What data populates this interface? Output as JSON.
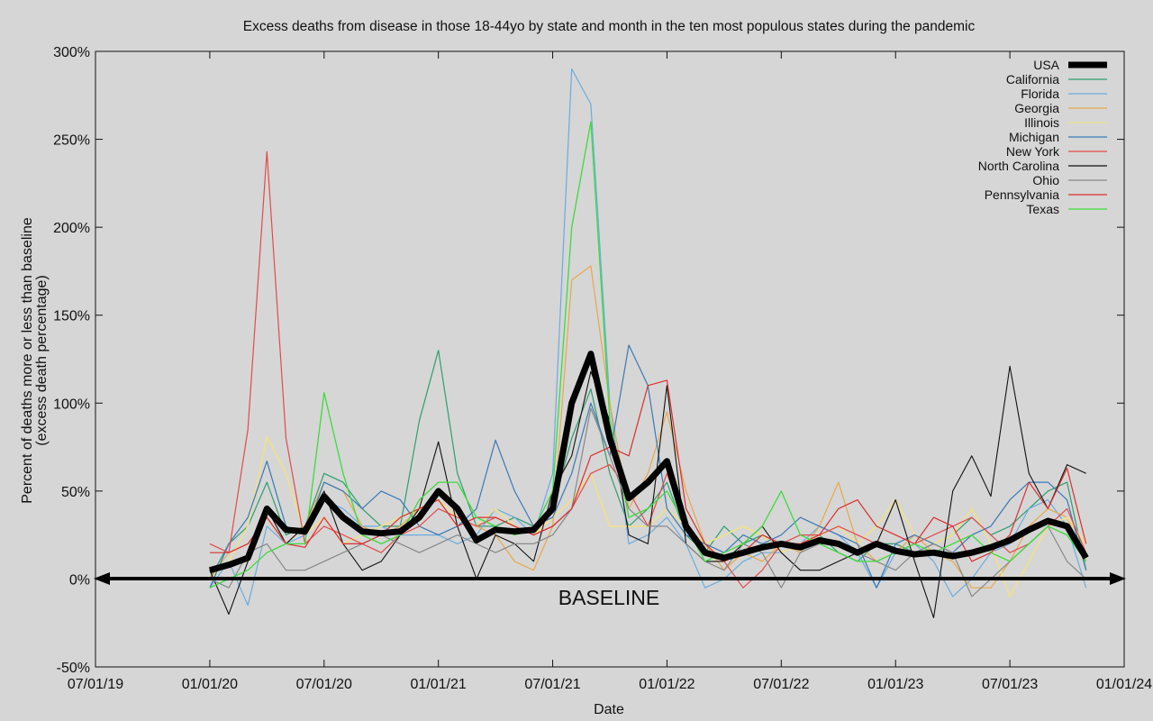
{
  "chart_data": {
    "type": "line",
    "title": "Excess deaths from disease in those 18-44yo by state and month in the ten most populous states during the pandemic",
    "xlabel": "Date",
    "ylabel": [
      "Percent of deaths more or less than baseline",
      "(excess death percentage)"
    ],
    "baseline_label": "BASELINE",
    "ylim": [
      -50,
      300
    ],
    "yticks": [
      -50,
      0,
      50,
      100,
      150,
      200,
      250,
      300
    ],
    "ytick_labels": [
      "-50%",
      "0%",
      "50%",
      "100%",
      "150%",
      "200%",
      "250%",
      "300%"
    ],
    "xlim_months_from_jan2020": [
      -6,
      48
    ],
    "xticks": [
      "07/01/19",
      "01/01/20",
      "07/01/20",
      "01/01/21",
      "07/01/21",
      "01/01/22",
      "07/01/22",
      "01/01/23",
      "07/01/23",
      "01/01/24"
    ],
    "x_start": "01/2020",
    "x_interval": "monthly",
    "grid": false,
    "legend_position": "top-right",
    "series": [
      {
        "name": "USA",
        "color": "#000000",
        "width": 7,
        "values": [
          5,
          8,
          12,
          40,
          28,
          27,
          47,
          35,
          27,
          26,
          27,
          35,
          50,
          40,
          22,
          28,
          27,
          28,
          40,
          100,
          128,
          80,
          46,
          55,
          67,
          30,
          15,
          12,
          15,
          18,
          20,
          18,
          22,
          20,
          15,
          20,
          16,
          14,
          15,
          13,
          15,
          18,
          22,
          28,
          33,
          30,
          12
        ]
      },
      {
        "name": "California",
        "color": "#2e9e6e",
        "width": 1.2,
        "values": [
          0,
          20,
          30,
          55,
          25,
          30,
          60,
          55,
          40,
          30,
          30,
          90,
          130,
          60,
          30,
          30,
          35,
          30,
          40,
          80,
          108,
          60,
          30,
          40,
          55,
          25,
          15,
          30,
          20,
          25,
          20,
          20,
          25,
          15,
          10,
          20,
          20,
          15,
          20,
          25,
          35,
          25,
          30,
          40,
          50,
          55,
          5
        ]
      },
      {
        "name": "Florida",
        "color": "#6aacdf",
        "width": 1.2,
        "values": [
          -5,
          10,
          -15,
          30,
          20,
          25,
          45,
          40,
          30,
          30,
          25,
          25,
          25,
          20,
          25,
          40,
          35,
          25,
          60,
          290,
          270,
          100,
          20,
          25,
          35,
          20,
          -5,
          0,
          10,
          15,
          15,
          20,
          30,
          25,
          15,
          -5,
          15,
          20,
          10,
          -10,
          0,
          15,
          20,
          40,
          45,
          30,
          -5
        ]
      },
      {
        "name": "Georgia",
        "color": "#e8a84a",
        "width": 1.2,
        "values": [
          0,
          15,
          20,
          35,
          20,
          30,
          55,
          50,
          30,
          25,
          30,
          40,
          45,
          35,
          30,
          25,
          10,
          5,
          30,
          170,
          178,
          100,
          40,
          60,
          95,
          50,
          20,
          5,
          15,
          10,
          20,
          15,
          30,
          55,
          20,
          10,
          15,
          25,
          15,
          10,
          -5,
          -5,
          10,
          30,
          40,
          35,
          10
        ]
      },
      {
        "name": "Illinois",
        "color": "#f0e08a",
        "width": 1.6,
        "values": [
          0,
          10,
          30,
          81,
          60,
          25,
          35,
          20,
          25,
          30,
          35,
          40,
          45,
          35,
          30,
          40,
          30,
          25,
          35,
          45,
          60,
          30,
          30,
          30,
          40,
          30,
          20,
          25,
          30,
          25,
          15,
          20,
          25,
          30,
          20,
          30,
          45,
          25,
          20,
          25,
          40,
          20,
          -10,
          10,
          30,
          35,
          20
        ]
      },
      {
        "name": "Michigan",
        "color": "#3a79b5",
        "width": 1.2,
        "values": [
          -5,
          20,
          35,
          67,
          30,
          25,
          55,
          50,
          40,
          50,
          45,
          30,
          25,
          30,
          40,
          79,
          50,
          30,
          35,
          60,
          100,
          70,
          133,
          110,
          40,
          25,
          20,
          15,
          25,
          20,
          25,
          35,
          30,
          25,
          20,
          -5,
          20,
          25,
          20,
          15,
          25,
          30,
          45,
          55,
          55,
          45,
          5
        ]
      },
      {
        "name": "New York",
        "color": "#e34a4a",
        "width": 1.2,
        "values": [
          20,
          15,
          85,
          243,
          80,
          20,
          30,
          25,
          20,
          15,
          25,
          30,
          40,
          35,
          30,
          35,
          30,
          25,
          30,
          40,
          60,
          65,
          50,
          30,
          60,
          30,
          15,
          10,
          -5,
          5,
          20,
          25,
          25,
          30,
          25,
          20,
          15,
          20,
          25,
          30,
          35,
          25,
          15,
          20,
          30,
          40,
          15
        ]
      },
      {
        "name": "North Carolina",
        "color": "#111111",
        "width": 1.1,
        "values": [
          5,
          -20,
          10,
          40,
          20,
          30,
          50,
          20,
          5,
          10,
          25,
          40,
          78,
          30,
          0,
          25,
          20,
          10,
          50,
          70,
          118,
          90,
          25,
          20,
          110,
          20,
          10,
          10,
          20,
          30,
          15,
          5,
          5,
          10,
          15,
          20,
          45,
          10,
          -22,
          50,
          70,
          47,
          121,
          60,
          40,
          65,
          60
        ]
      },
      {
        "name": "Ohio",
        "color": "#888888",
        "width": 1.2,
        "values": [
          0,
          -5,
          15,
          20,
          5,
          5,
          10,
          15,
          20,
          25,
          20,
          15,
          20,
          25,
          20,
          15,
          20,
          20,
          25,
          40,
          97,
          70,
          40,
          30,
          30,
          20,
          10,
          5,
          20,
          15,
          -5,
          15,
          20,
          20,
          15,
          10,
          5,
          15,
          20,
          15,
          -10,
          0,
          10,
          20,
          30,
          10,
          0
        ]
      },
      {
        "name": "Pennsylvania",
        "color": "#d93030",
        "width": 1.2,
        "values": [
          15,
          15,
          20,
          35,
          20,
          18,
          35,
          20,
          20,
          25,
          35,
          40,
          45,
          30,
          35,
          35,
          30,
          25,
          30,
          40,
          70,
          75,
          70,
          110,
          113,
          40,
          20,
          10,
          15,
          25,
          20,
          20,
          25,
          40,
          45,
          30,
          25,
          20,
          35,
          30,
          10,
          15,
          25,
          55,
          40,
          63,
          20
        ]
      },
      {
        "name": "Texas",
        "color": "#3ddb3d",
        "width": 1.3,
        "values": [
          -5,
          0,
          5,
          15,
          20,
          20,
          106,
          60,
          25,
          20,
          25,
          45,
          55,
          55,
          35,
          30,
          25,
          28,
          50,
          200,
          260,
          90,
          35,
          40,
          50,
          30,
          10,
          15,
          20,
          30,
          50,
          25,
          20,
          15,
          10,
          10,
          15,
          20,
          15,
          20,
          25,
          15,
          10,
          20,
          30,
          25,
          10
        ]
      }
    ]
  }
}
